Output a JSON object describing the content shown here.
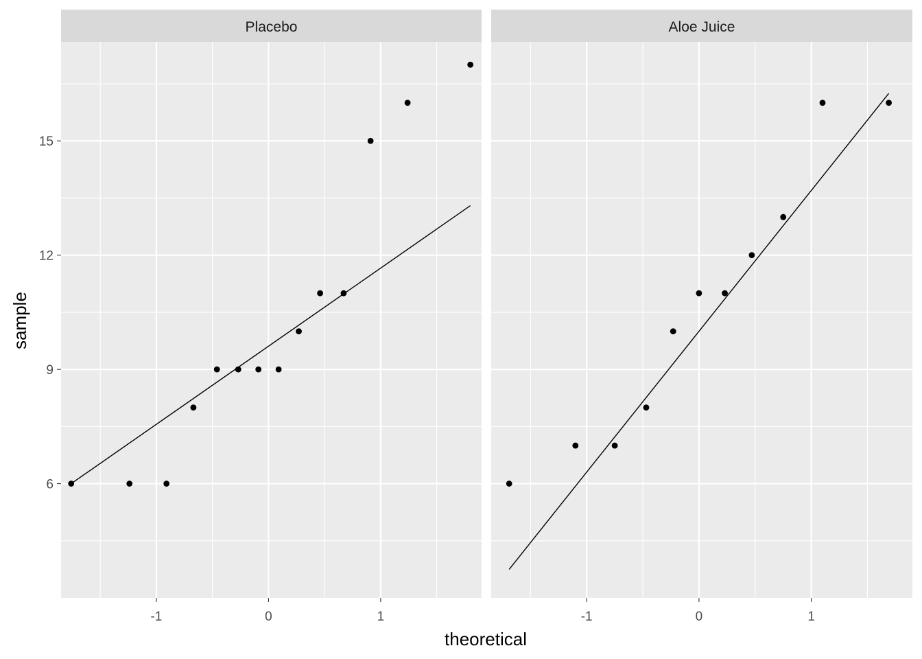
{
  "chart_data": {
    "type": "scatter",
    "subtype": "qq-plot-facets",
    "xlabel": "theoretical",
    "ylabel": "sample",
    "xlim": [
      -1.85,
      1.9
    ],
    "ylim": [
      3.0,
      17.6
    ],
    "x_ticks": [
      -1,
      0,
      1
    ],
    "x_tick_labels": [
      "-1",
      "0",
      "1"
    ],
    "y_ticks": [
      6,
      9,
      12,
      15
    ],
    "y_tick_labels": [
      "6",
      "9",
      "12",
      "15"
    ],
    "grid": true,
    "colors": {
      "panel_background": "#ebebeb",
      "strip_background": "#d9d9d9",
      "grid_line": "#ffffff",
      "point": "#000000",
      "line": "#000000"
    },
    "facets": [
      {
        "label": "Placebo",
        "points": [
          {
            "x": -1.76,
            "y": 6
          },
          {
            "x": -1.24,
            "y": 6
          },
          {
            "x": -0.91,
            "y": 6
          },
          {
            "x": -0.67,
            "y": 8
          },
          {
            "x": -0.46,
            "y": 9
          },
          {
            "x": -0.27,
            "y": 9
          },
          {
            "x": -0.09,
            "y": 9
          },
          {
            "x": 0.09,
            "y": 9
          },
          {
            "x": 0.27,
            "y": 10
          },
          {
            "x": 0.46,
            "y": 11
          },
          {
            "x": 0.67,
            "y": 11
          },
          {
            "x": 0.91,
            "y": 15
          },
          {
            "x": 1.24,
            "y": 16
          },
          {
            "x": 1.8,
            "y": 17
          }
        ],
        "qq_line": {
          "x": [
            -1.76,
            1.8
          ],
          "y": [
            6.0,
            13.3
          ]
        }
      },
      {
        "label": "Aloe Juice",
        "points": [
          {
            "x": -1.69,
            "y": 6
          },
          {
            "x": -1.1,
            "y": 7
          },
          {
            "x": -0.75,
            "y": 7
          },
          {
            "x": -0.47,
            "y": 8
          },
          {
            "x": -0.23,
            "y": 10
          },
          {
            "x": 0.0,
            "y": 11
          },
          {
            "x": 0.23,
            "y": 11
          },
          {
            "x": 0.47,
            "y": 12
          },
          {
            "x": 0.75,
            "y": 13
          },
          {
            "x": 1.1,
            "y": 16
          },
          {
            "x": 1.69,
            "y": 16
          }
        ],
        "qq_line": {
          "x": [
            -1.69,
            1.69
          ],
          "y": [
            3.75,
            16.25
          ]
        }
      }
    ]
  }
}
